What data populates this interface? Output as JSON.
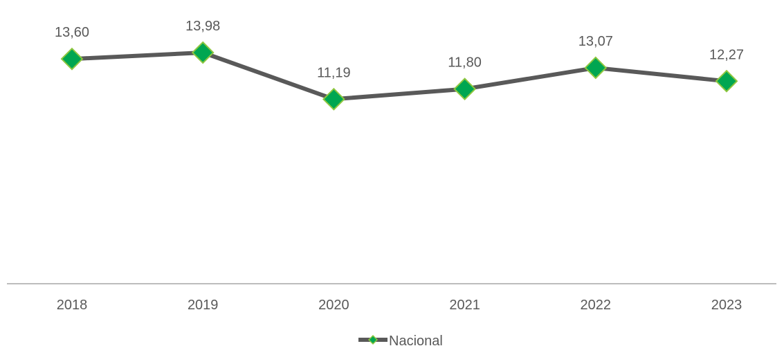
{
  "chart_data": {
    "type": "line",
    "categories": [
      "2018",
      "2019",
      "2020",
      "2021",
      "2022",
      "2023"
    ],
    "series": [
      {
        "name": "Nacional",
        "values": [
          13.6,
          13.98,
          11.19,
          11.8,
          13.07,
          12.27
        ],
        "value_labels": [
          "13,60",
          "13,98",
          "11,19",
          "11,80",
          "13,07",
          "12,27"
        ],
        "line_color": "#595959",
        "marker": "diamond",
        "marker_fill": "#00A651",
        "marker_stroke": "#8DC63F"
      }
    ],
    "title": "",
    "xlabel": "",
    "ylabel": "",
    "ylim": [
      0,
      15
    ],
    "grid": false,
    "legend_position": "bottom",
    "axis_color": "#a6a6a6"
  }
}
